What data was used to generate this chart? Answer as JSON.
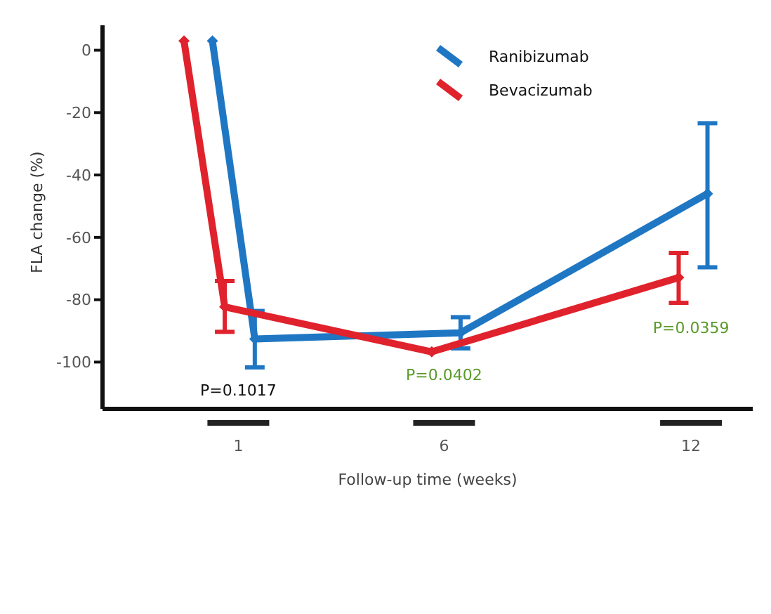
{
  "chart_data": {
    "type": "line",
    "xlabel": "Follow-up time (weeks)",
    "ylabel": "FLA change (%)",
    "xlim": [
      -2.3,
      13.5
    ],
    "xticks": [
      1,
      6,
      12
    ],
    "ylim": [
      -115,
      8
    ],
    "yticks": [
      0,
      -20,
      -40,
      -60,
      -80,
      -100
    ],
    "grid": false,
    "legend": "top",
    "marker": "diamond",
    "line_style": "solid",
    "series": [
      {
        "name": "Ranibizumab",
        "color": "#1f77c4",
        "x": [
          0.37,
          1.4,
          6.4,
          12.4
        ],
        "values": [
          3,
          -92.6,
          -90.6,
          -46
        ],
        "errors": [
          null,
          [
            -101.7,
            -83.6
          ],
          [
            -95.6,
            -85.6
          ],
          [
            -69.6,
            -23.4
          ]
        ]
      },
      {
        "name": "Bevacizumab",
        "color": "#e0222c",
        "x": [
          -0.32,
          0.67,
          5.7,
          11.7
        ],
        "values": [
          3,
          -82.3,
          -96.7,
          -72.9
        ],
        "errors": [
          null,
          [
            -90.3,
            -74
          ],
          null,
          [
            -81,
            -65
          ]
        ]
      }
    ],
    "annotations": [
      "P=0.1017",
      "P=0.0402",
      "P=0.0359"
    ]
  }
}
